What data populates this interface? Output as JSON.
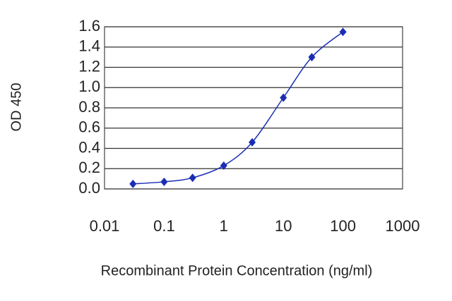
{
  "chart_data": {
    "type": "scatter",
    "x_label": "Recombinant Protein Concentration (ng/ml)",
    "y_label": "OD 450",
    "x": [
      0.03,
      0.1,
      0.3,
      1,
      3,
      10,
      30,
      100
    ],
    "values": [
      0.05,
      0.07,
      0.11,
      0.23,
      0.46,
      0.9,
      1.3,
      1.55
    ],
    "color": "#1b2db5",
    "x_log": true,
    "xlim": [
      0.01,
      1000
    ],
    "xticks": [
      0.01,
      0.1,
      1,
      10,
      100,
      1000
    ],
    "ylim": [
      0,
      1.6
    ],
    "yticks": [
      {
        "value": 0,
        "label": "0.0"
      },
      0.2,
      0.4,
      0.6,
      0.8,
      {
        "value": 1,
        "label": "1.0"
      },
      1.2,
      1.4,
      1.6
    ],
    "grid": true,
    "smooth_line": true
  }
}
